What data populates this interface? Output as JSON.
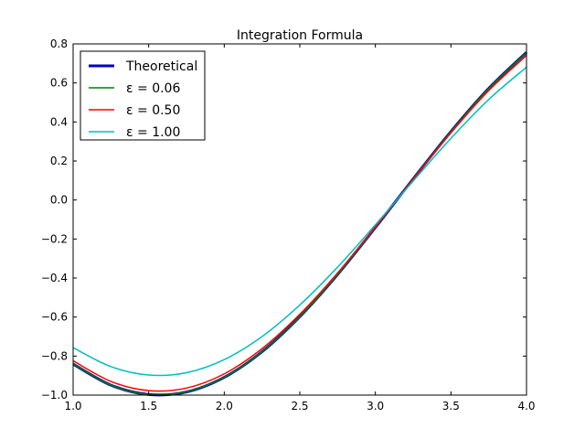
{
  "chart_data": {
    "type": "line",
    "title": "Integration Formula",
    "xlabel": "",
    "ylabel": "",
    "xlim": [
      1.0,
      4.0
    ],
    "ylim": [
      -1.0,
      0.8
    ],
    "xticks": [
      "1.0",
      "1.5",
      "2.0",
      "2.5",
      "3.0",
      "3.5",
      "4.0"
    ],
    "yticks": [
      "−1.0",
      "−0.8",
      "−0.6",
      "−0.4",
      "−0.2",
      "0.0",
      "0.2",
      "0.4",
      "0.6",
      "0.8"
    ],
    "grid": false,
    "legend_position": "top-left",
    "x": [
      1.0,
      1.25,
      1.5,
      1.75,
      2.0,
      2.25,
      2.5,
      2.75,
      3.0,
      3.25,
      3.5,
      3.75,
      4.0
    ],
    "series": [
      {
        "name": "Theoretical",
        "color": "#0000bf",
        "thick": true,
        "values": [
          -0.841,
          -0.949,
          -0.997,
          -0.984,
          -0.909,
          -0.778,
          -0.598,
          -0.382,
          -0.141,
          0.108,
          0.351,
          0.572,
          0.757
        ]
      },
      {
        "name": "ε = 0.06",
        "color": "#008000",
        "thick": false,
        "values": [
          -0.84,
          -0.949,
          -0.997,
          -0.983,
          -0.909,
          -0.778,
          -0.598,
          -0.382,
          -0.141,
          0.108,
          0.35,
          0.571,
          0.756
        ]
      },
      {
        "name": "ε = 0.50",
        "color": "#ff0000",
        "thick": false,
        "values": [
          -0.824,
          -0.93,
          -0.977,
          -0.964,
          -0.891,
          -0.762,
          -0.586,
          -0.374,
          -0.138,
          0.106,
          0.344,
          0.561,
          0.741
        ]
      },
      {
        "name": "ε = 1.00",
        "color": "#00bfbf",
        "thick": false,
        "values": [
          -0.757,
          -0.854,
          -0.897,
          -0.885,
          -0.818,
          -0.7,
          -0.538,
          -0.344,
          -0.127,
          0.097,
          0.316,
          0.515,
          0.681
        ]
      }
    ]
  }
}
